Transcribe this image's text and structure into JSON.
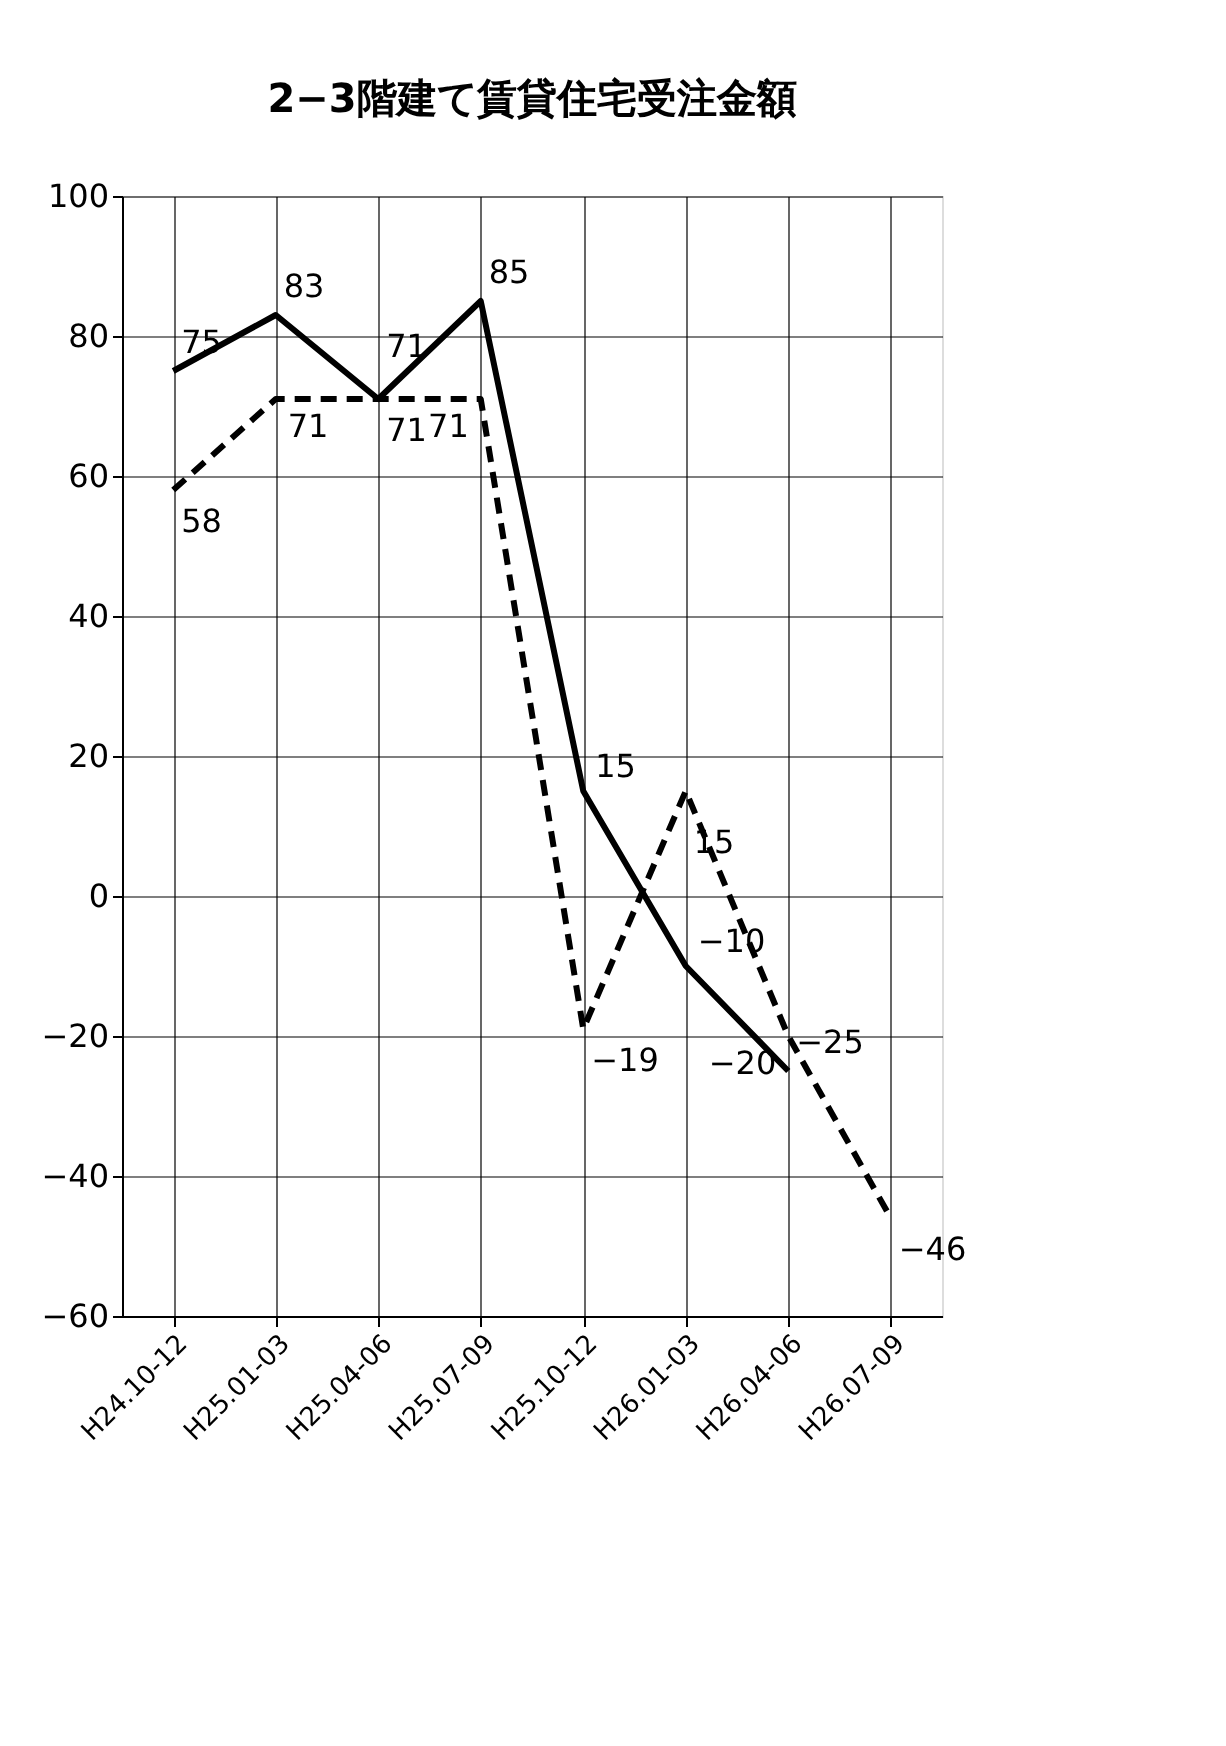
{
  "chart_data": {
    "type": "line",
    "title": "2−3階建て賃貸住宅受注金額",
    "categories": [
      "H24.10-12",
      "H25.01-03",
      "H25.04-06",
      "H25.07-09",
      "H25.10-12",
      "H26.01-03",
      "H26.04-06",
      "H26.07-09"
    ],
    "series": [
      {
        "color": "#000000",
        "line_style": "solid",
        "values": [
          75,
          83,
          71,
          85,
          15,
          -10,
          -25,
          null
        ]
      },
      {
        "color": "#000000",
        "line_style": "dashed",
        "values": [
          58,
          71,
          71,
          71,
          -19,
          15,
          -20,
          -46
        ]
      }
    ],
    "ylim": [
      -60,
      100
    ],
    "yticks": [
      -60,
      -40,
      -20,
      0,
      20,
      40,
      60,
      80,
      100
    ],
    "grid": true,
    "data_labels": true,
    "marker": "none"
  }
}
